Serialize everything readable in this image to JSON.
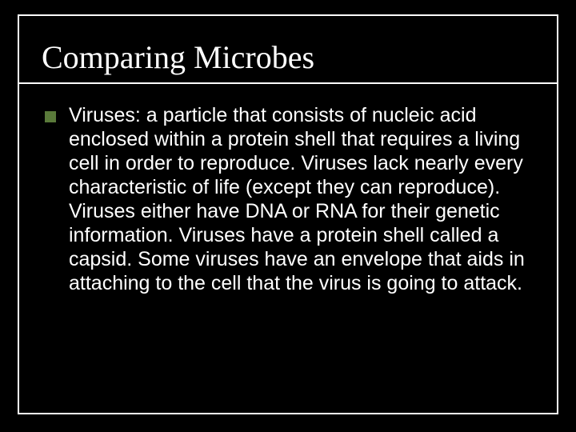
{
  "slide": {
    "title": "Comparing Microbes",
    "body": "Viruses:   a particle that consists of nucleic acid enclosed within a protein shell that requires a living cell in order to reproduce.  Viruses lack nearly every characteristic of life (except they can reproduce).  Viruses either have DNA or RNA for their genetic information.  Viruses have a protein shell called a capsid.  Some viruses have an envelope that aids in attaching to the cell that the virus is going to attack."
  },
  "style": {
    "background_color": "#000000",
    "frame_border_color": "#ffffff",
    "title_font": "Times New Roman",
    "title_fontsize": 40,
    "title_color": "#ffffff",
    "body_font": "Arial",
    "body_fontsize": 25,
    "body_color": "#ffffff",
    "bullet_color": "#5a7a3a",
    "bullet_size": 14,
    "underline_color": "#ffffff"
  }
}
